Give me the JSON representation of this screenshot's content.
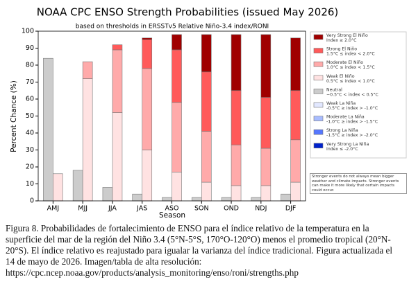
{
  "chart_data": {
    "type": "bar",
    "title": "NOAA CPC ENSO Strength Probabilities (issued May 2026)",
    "subtitle": "based on thresholds in ERSSTv5 Relative Niño-3.4 index/RONI",
    "x_label": "Season",
    "y_label": "Percent Chance (%)",
    "categories": [
      "AMJ",
      "MJJ",
      "JJA",
      "JAS",
      "ASO",
      "SON",
      "OND",
      "NDJ",
      "DJF"
    ],
    "ylim": [
      0,
      100
    ],
    "yticks": [
      0,
      10,
      20,
      30,
      40,
      50,
      60,
      70,
      80,
      90,
      100
    ],
    "series": [
      {
        "name": "Very Strong El Niño",
        "range": "Index ≥ 2.0°C",
        "color": "#a00000",
        "values": [
          0,
          0,
          0,
          1,
          9,
          22,
          33,
          37,
          31
        ]
      },
      {
        "name": "Strong El Niño",
        "range": "1.5°C ≤ index < 2.0°C",
        "color": "#ff5a5a",
        "values": [
          0,
          0,
          3,
          17,
          31,
          35,
          32,
          30,
          29
        ]
      },
      {
        "name": "Moderate El Niño",
        "range": "1.0°C ≤ index < 1.5°C",
        "color": "#ffaaaa",
        "values": [
          0,
          10,
          37,
          48,
          41,
          30,
          24,
          22,
          25
        ]
      },
      {
        "name": "Weak El Niño",
        "range": "0.5°C ≤ index < 1.0°C",
        "color": "#ffe2e2",
        "values": [
          16,
          72,
          52,
          30,
          17,
          11,
          9,
          9,
          11
        ]
      },
      {
        "name": "Neutral",
        "range": "−0.5°C < index < 0.5°C",
        "color": "#cccccc",
        "values": [
          84,
          18,
          8,
          4,
          2,
          2,
          2,
          2,
          4
        ]
      },
      {
        "name": "Weak La Niña",
        "range": "-0.5°C ≥ index > -1.0°C",
        "color": "#e2e8ff",
        "values": [
          0,
          0,
          0,
          0,
          0,
          0,
          0,
          0,
          0
        ]
      },
      {
        "name": "Moderate La Niña",
        "range": "-1.0°C ≥ index > -1.5°C",
        "color": "#a8bcff",
        "values": [
          0,
          0,
          0,
          0,
          0,
          0,
          0,
          0,
          0
        ]
      },
      {
        "name": "Strong La Niña",
        "range": "-1.5°C ≥ index > -2.0°C",
        "color": "#5577ff",
        "values": [
          0,
          0,
          0,
          0,
          0,
          0,
          0,
          0,
          0
        ]
      },
      {
        "name": "Very Strong La Niña",
        "range": "Index ≤ -2.0°C",
        "color": "#0022cc",
        "values": [
          0,
          0,
          0,
          0,
          0,
          0,
          0,
          0,
          0
        ]
      }
    ],
    "note": "Stronger events do not always mean bigger weather and climate impacts. Stronger events can make it more likely that certain impacts could occur."
  },
  "caption": "Figura 8. Probabilidades de fortalecimiento de ENSO para el índice relativo de la temperatura en la superficie del mar de la región del Niño 3.4 (5°N-5°S, 170°O-120°O) menos el promedio tropical (20°N-20°S). El índice relativo es reajustado para igualar la varianza del índice tradicional. Figura actualizada el 14 de mayo de 2026. Imagen/tabla de alta resolución: https://cpc.ncep.noaa.gov/products/analysis_monitoring/enso/roni/strengths.php"
}
